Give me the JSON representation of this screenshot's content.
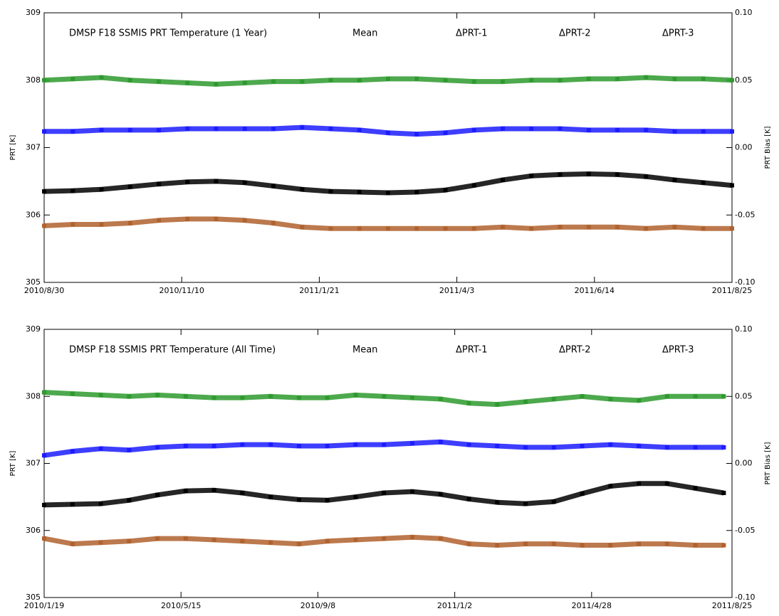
{
  "chart_data": [
    {
      "type": "scatter",
      "title": "DMSP F18 SSMIS PRT Temperature (1 Year)",
      "title_color": "#ff2a2a",
      "ylabel": "PRT [K]",
      "y2label": "PRT Bias [K]",
      "x": [
        "2010/8/30",
        "2010/9/14",
        "2010/9/29",
        "2010/10/14",
        "2010/10/29",
        "2010/11/13",
        "2010/11/28",
        "2010/12/13",
        "2010/12/28",
        "2011/1/12",
        "2011/1/27",
        "2011/2/11",
        "2011/2/26",
        "2011/3/13",
        "2011/3/28",
        "2011/4/12",
        "2011/4/27",
        "2011/5/12",
        "2011/5/27",
        "2011/6/11",
        "2011/6/26",
        "2011/7/11",
        "2011/7/26",
        "2011/8/10",
        "2011/8/25"
      ],
      "xlim": [
        "2010/8/30",
        "2011/8/25"
      ],
      "xticks": [
        "2010/8/30",
        "2010/11/10",
        "2011/1/21",
        "2011/4/3",
        "2011/6/14",
        "2011/8/25"
      ],
      "ylim": [
        305,
        309
      ],
      "yticks": [
        305,
        306,
        307,
        308,
        309
      ],
      "y2lim": [
        -0.1,
        0.1
      ],
      "y2ticks": [
        {
          "value": -0.1,
          "label": "-0.10"
        },
        -0.05,
        {
          "value": 0,
          "label": "0.00"
        },
        0.05,
        {
          "value": 0.1,
          "label": "0.10"
        }
      ],
      "series": [
        {
          "name": "Mean",
          "color": "#000000",
          "values": [
            306.35,
            306.36,
            306.38,
            306.42,
            306.46,
            306.49,
            306.5,
            306.48,
            306.43,
            306.38,
            306.35,
            306.34,
            306.33,
            306.34,
            306.37,
            306.44,
            306.52,
            306.58,
            306.6,
            306.61,
            306.6,
            306.57,
            306.52,
            306.48,
            306.44
          ]
        },
        {
          "name": "ΔPRT-1",
          "color": "#2e9a2e",
          "axis": "y2",
          "values": [
            0.05,
            0.051,
            0.052,
            0.05,
            0.049,
            0.048,
            0.047,
            0.048,
            0.049,
            0.049,
            0.05,
            0.05,
            0.051,
            0.051,
            0.05,
            0.049,
            0.049,
            0.05,
            0.05,
            0.051,
            0.051,
            0.052,
            0.051,
            0.051,
            0.05
          ]
        },
        {
          "name": "ΔPRT-2",
          "color": "#1c1cff",
          "axis": "y2",
          "values": [
            0.012,
            0.012,
            0.013,
            0.013,
            0.013,
            0.014,
            0.014,
            0.014,
            0.014,
            0.015,
            0.014,
            0.013,
            0.011,
            0.01,
            0.011,
            0.013,
            0.014,
            0.014,
            0.014,
            0.013,
            0.013,
            0.013,
            0.012,
            0.012,
            0.012
          ]
        },
        {
          "name": "ΔPRT-3",
          "color": "#b0622e",
          "axis": "y2",
          "values": [
            -0.058,
            -0.057,
            -0.057,
            -0.056,
            -0.054,
            -0.053,
            -0.053,
            -0.054,
            -0.056,
            -0.059,
            -0.06,
            -0.06,
            -0.06,
            -0.06,
            -0.06,
            -0.06,
            -0.059,
            -0.06,
            -0.059,
            -0.059,
            -0.059,
            -0.06,
            -0.059,
            -0.06,
            -0.06
          ]
        }
      ]
    },
    {
      "type": "scatter",
      "title": "DMSP F18 SSMIS PRT Temperature (All Time)",
      "title_color": "#ff2a2a",
      "ylabel": "PRT [K]",
      "y2label": "PRT Bias [K]",
      "x": [
        "2010/1/19",
        "2010/2/12",
        "2010/3/8",
        "2010/4/1",
        "2010/4/25",
        "2010/5/19",
        "2010/6/12",
        "2010/7/6",
        "2010/7/30",
        "2010/8/23",
        "2010/9/16",
        "2010/10/10",
        "2010/11/3",
        "2010/11/27",
        "2010/12/21",
        "2011/1/14",
        "2011/2/7",
        "2011/3/3",
        "2011/3/27",
        "2011/4/20",
        "2011/5/14",
        "2011/6/7",
        "2011/7/1",
        "2011/7/25",
        "2011/8/18"
      ],
      "xlim": [
        "2010/1/19",
        "2011/8/25"
      ],
      "xticks": [
        "2010/1/19",
        "2010/5/15",
        "2010/9/8",
        "2011/1/2",
        "2011/4/28",
        "2011/8/25"
      ],
      "ylim": [
        305,
        309
      ],
      "yticks": [
        305,
        306,
        307,
        308,
        309
      ],
      "y2lim": [
        -0.1,
        0.1
      ],
      "y2ticks": [
        {
          "value": -0.1,
          "label": "-0.10"
        },
        -0.05,
        {
          "value": 0,
          "label": "0.00"
        },
        0.05,
        {
          "value": 0.1,
          "label": "0.10"
        }
      ],
      "series": [
        {
          "name": "Mean",
          "color": "#000000",
          "values": [
            306.38,
            306.39,
            306.4,
            306.45,
            306.53,
            306.59,
            306.6,
            306.56,
            306.5,
            306.46,
            306.45,
            306.5,
            306.56,
            306.58,
            306.54,
            306.47,
            306.42,
            306.4,
            306.43,
            306.55,
            306.66,
            306.7,
            306.7,
            306.63,
            306.56
          ]
        },
        {
          "name": "ΔPRT-1",
          "color": "#2e9a2e",
          "axis": "y2",
          "values": [
            0.053,
            0.052,
            0.051,
            0.05,
            0.051,
            0.05,
            0.049,
            0.049,
            0.05,
            0.049,
            0.049,
            0.051,
            0.05,
            0.049,
            0.048,
            0.045,
            0.044,
            0.046,
            0.048,
            0.05,
            0.048,
            0.047,
            0.05,
            0.05,
            0.05
          ]
        },
        {
          "name": "ΔPRT-2",
          "color": "#1c1cff",
          "axis": "y2",
          "values": [
            0.006,
            0.009,
            0.011,
            0.01,
            0.012,
            0.013,
            0.013,
            0.014,
            0.014,
            0.013,
            0.013,
            0.014,
            0.014,
            0.015,
            0.016,
            0.014,
            0.013,
            0.012,
            0.012,
            0.013,
            0.014,
            0.013,
            0.012,
            0.012,
            0.012
          ]
        },
        {
          "name": "ΔPRT-3",
          "color": "#b0622e",
          "axis": "y2",
          "values": [
            -0.056,
            -0.06,
            -0.059,
            -0.058,
            -0.056,
            -0.056,
            -0.057,
            -0.058,
            -0.059,
            -0.06,
            -0.058,
            -0.057,
            -0.056,
            -0.055,
            -0.056,
            -0.06,
            -0.061,
            -0.06,
            -0.06,
            -0.061,
            -0.061,
            -0.06,
            -0.06,
            -0.061,
            -0.061
          ]
        }
      ]
    }
  ]
}
